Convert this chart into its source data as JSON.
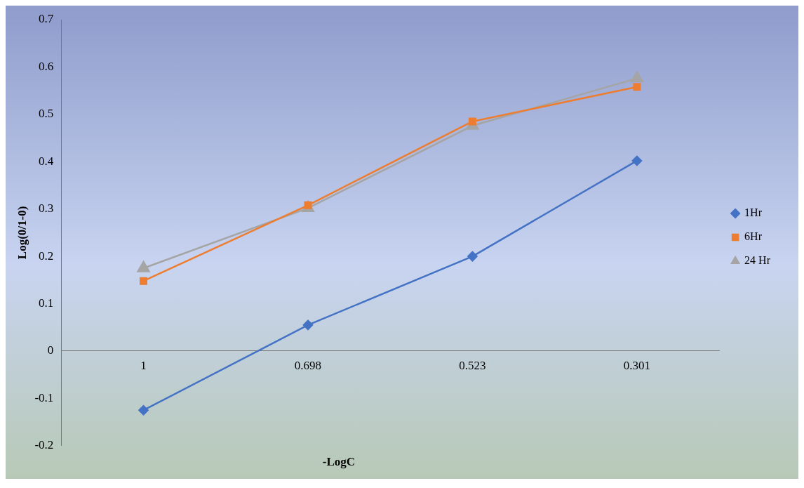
{
  "chart_data": {
    "type": "line",
    "xlabel": "-LogC",
    "ylabel": "Log(0/1-0)",
    "categories": [
      "1",
      "0.698",
      "0.523",
      "0.301"
    ],
    "series": [
      {
        "name": "1Hr",
        "color": "#4472c4",
        "marker": "diamond",
        "values": [
          -0.125,
          0.055,
          0.2,
          0.402
        ]
      },
      {
        "name": "6Hr",
        "color": "#ed7d31",
        "marker": "square",
        "values": [
          0.148,
          0.308,
          0.485,
          0.558
        ]
      },
      {
        "name": "24 Hr",
        "color": "#a5a5a5",
        "marker": "triangle",
        "values": [
          0.175,
          0.302,
          0.476,
          0.576
        ]
      }
    ],
    "ylim": [
      -0.2,
      0.7
    ],
    "yticks": [
      -0.2,
      -0.1,
      0,
      0.1,
      0.2,
      0.3,
      0.4,
      0.5,
      0.6,
      0.7
    ],
    "grid": false,
    "legend": "right"
  }
}
